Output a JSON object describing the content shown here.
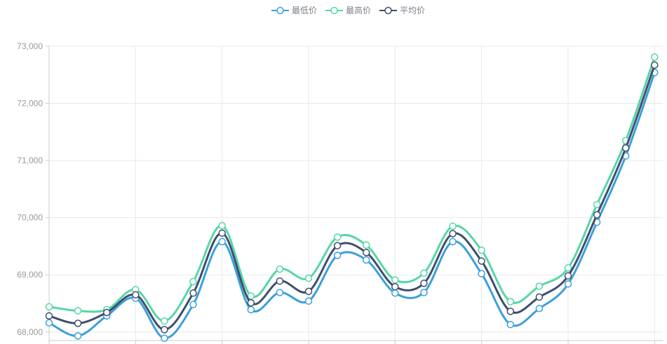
{
  "chart_data": {
    "type": "line",
    "title": "",
    "smooth": true,
    "legend_position": "top-center",
    "grid_on": true,
    "x_axis": {
      "labels_visible": false,
      "num_points": 22,
      "gridline_every": 3
    },
    "y_axis": {
      "min": 67850,
      "max": 73000,
      "tick_labels": [
        "68,000",
        "69,000",
        "70,000",
        "71,000",
        "72,000",
        "73,000"
      ],
      "tick_values": [
        68000,
        69000,
        70000,
        71000,
        72000,
        73000
      ]
    },
    "series": [
      {
        "name": "最低价",
        "color": "#3ba0dd",
        "values": [
          68160,
          67930,
          68280,
          68590,
          67890,
          68480,
          69580,
          68390,
          68690,
          68540,
          69340,
          69260,
          68680,
          68690,
          69580,
          69020,
          68130,
          68410,
          68840,
          69920,
          71080,
          72540
        ]
      },
      {
        "name": "最高价",
        "color": "#57d6a6",
        "values": [
          68440,
          68370,
          68390,
          68740,
          68190,
          68880,
          69860,
          68630,
          69100,
          68940,
          69660,
          69520,
          68910,
          69030,
          69850,
          69430,
          68530,
          68800,
          69120,
          70230,
          71350,
          72810
        ]
      },
      {
        "name": "平均价",
        "color": "#3f4e6b",
        "values": [
          68280,
          68150,
          68340,
          68650,
          68040,
          68680,
          69730,
          68510,
          68890,
          68710,
          69510,
          69390,
          68790,
          68850,
          69720,
          69240,
          68360,
          68610,
          68980,
          70050,
          71220,
          72670
        ]
      }
    ],
    "style": {
      "background": "#ffffff",
      "gridline_color": "#e9e9e9",
      "axis_line_color": "#cccccc",
      "axis_label_color": "#999999",
      "legend_text_color": "#7d8088",
      "marker_fill": "#ffffff"
    }
  }
}
